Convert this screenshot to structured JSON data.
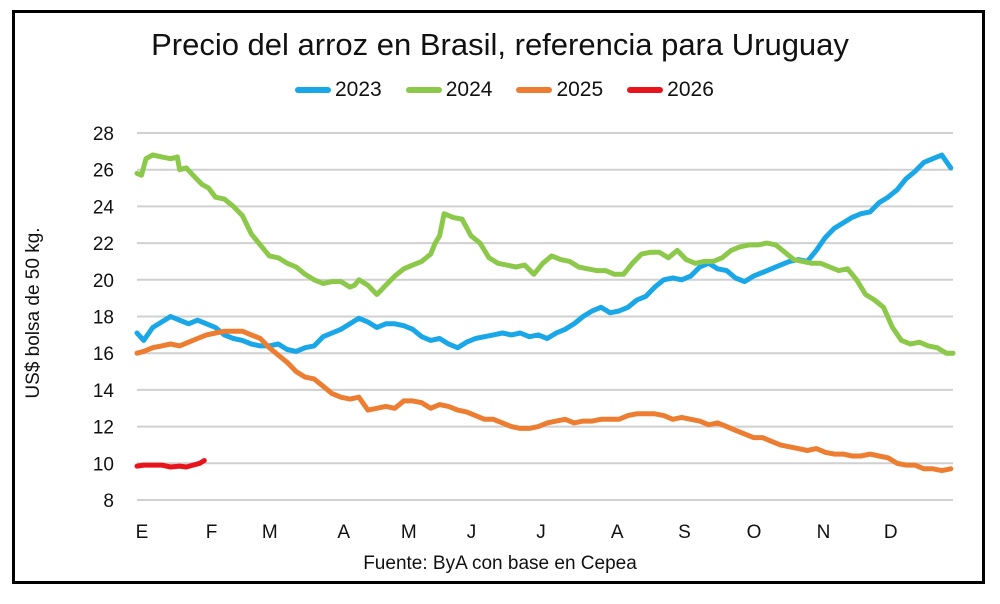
{
  "chart_data": {
    "type": "line",
    "title": "Precio del arroz en Brasil, referencia para Uruguay",
    "xlabel": "",
    "ylabel": "US$ bolsa de 50 kg.",
    "source": "Fuente: ByA con base en Cepea",
    "ylim": [
      8,
      28
    ],
    "yticks": [
      8,
      10,
      12,
      14,
      16,
      18,
      20,
      22,
      24,
      26,
      28
    ],
    "xlim": [
      1,
      365
    ],
    "xticks": [
      {
        "label": "E",
        "day": 1
      },
      {
        "label": "F",
        "day": 32
      },
      {
        "label": "M",
        "day": 58
      },
      {
        "label": "A",
        "day": 91
      },
      {
        "label": "M",
        "day": 120
      },
      {
        "label": "J",
        "day": 148
      },
      {
        "label": "J",
        "day": 179
      },
      {
        "label": "A",
        "day": 213
      },
      {
        "label": "S",
        "day": 243
      },
      {
        "label": "O",
        "day": 274
      },
      {
        "label": "N",
        "day": 305
      },
      {
        "label": "D",
        "day": 335
      }
    ],
    "grid": true,
    "legend_position": "top",
    "series": [
      {
        "name": "2023",
        "color": "#1AA7E8",
        "x": [
          1,
          4,
          8,
          12,
          16,
          20,
          24,
          28,
          32,
          36,
          40,
          44,
          48,
          52,
          56,
          60,
          64,
          68,
          72,
          76,
          80,
          84,
          88,
          92,
          96,
          100,
          104,
          108,
          112,
          116,
          120,
          124,
          128,
          132,
          136,
          140,
          144,
          148,
          152,
          156,
          160,
          164,
          168,
          172,
          176,
          180,
          184,
          188,
          192,
          196,
          200,
          204,
          208,
          212,
          216,
          220,
          224,
          228,
          232,
          236,
          240,
          244,
          248,
          252,
          256,
          260,
          264,
          268,
          272,
          276,
          280,
          284,
          288,
          292,
          296,
          300,
          304,
          308,
          312,
          316,
          320,
          324,
          328,
          332,
          336,
          340,
          344,
          348,
          352,
          356,
          360,
          364
        ],
        "y": [
          17.1,
          16.7,
          17.4,
          17.7,
          18.0,
          17.8,
          17.6,
          17.8,
          17.6,
          17.4,
          17.0,
          16.8,
          16.7,
          16.5,
          16.4,
          16.4,
          16.5,
          16.2,
          16.1,
          16.3,
          16.4,
          16.9,
          17.1,
          17.3,
          17.6,
          17.9,
          17.7,
          17.4,
          17.6,
          17.6,
          17.5,
          17.3,
          16.9,
          16.7,
          16.8,
          16.5,
          16.3,
          16.6,
          16.8,
          16.9,
          17.0,
          17.1,
          17.0,
          17.1,
          16.9,
          17.0,
          16.8,
          17.1,
          17.3,
          17.6,
          18.0,
          18.3,
          18.5,
          18.2,
          18.3,
          18.5,
          18.9,
          19.1,
          19.6,
          20.0,
          20.1,
          20.0,
          20.2,
          20.7,
          20.9,
          20.6,
          20.5,
          20.1,
          19.9,
          20.2,
          20.4,
          20.6,
          20.8,
          21.0,
          21.1,
          21.0,
          21.6,
          22.3,
          22.8,
          23.1,
          23.4,
          23.6,
          23.7,
          24.2,
          24.5,
          24.9,
          25.5,
          25.9,
          26.4,
          26.6,
          26.8,
          26.1
        ]
      },
      {
        "name": "2024",
        "color": "#8CC94A",
        "x": [
          1,
          3,
          5,
          8,
          12,
          16,
          19,
          20,
          23,
          26,
          30,
          33,
          36,
          40,
          44,
          48,
          52,
          56,
          60,
          64,
          68,
          72,
          76,
          80,
          84,
          88,
          92,
          96,
          98,
          100,
          104,
          108,
          112,
          116,
          120,
          124,
          128,
          132,
          134,
          136,
          138,
          142,
          146,
          150,
          154,
          158,
          162,
          166,
          170,
          174,
          178,
          182,
          186,
          190,
          194,
          198,
          202,
          206,
          210,
          214,
          218,
          222,
          226,
          230,
          234,
          238,
          242,
          246,
          250,
          254,
          258,
          262,
          266,
          270,
          274,
          278,
          282,
          286,
          290,
          294,
          298,
          302,
          306,
          310,
          314,
          318,
          322,
          326,
          330,
          334,
          338,
          342,
          346,
          350,
          354,
          358,
          362,
          365
        ],
        "y": [
          25.8,
          25.7,
          26.6,
          26.8,
          26.7,
          26.6,
          26.7,
          26.0,
          26.1,
          25.7,
          25.2,
          25.0,
          24.5,
          24.4,
          24.0,
          23.5,
          22.5,
          21.9,
          21.3,
          21.2,
          20.9,
          20.7,
          20.3,
          20.0,
          19.8,
          19.9,
          19.9,
          19.6,
          19.7,
          20.0,
          19.7,
          19.2,
          19.7,
          20.2,
          20.6,
          20.8,
          21.0,
          21.4,
          22.0,
          22.4,
          23.6,
          23.4,
          23.3,
          22.4,
          22.0,
          21.2,
          20.9,
          20.8,
          20.7,
          20.8,
          20.3,
          20.9,
          21.3,
          21.1,
          21.0,
          20.7,
          20.6,
          20.5,
          20.5,
          20.3,
          20.3,
          20.9,
          21.4,
          21.5,
          21.5,
          21.2,
          21.6,
          21.1,
          20.9,
          21.0,
          21.0,
          21.2,
          21.6,
          21.8,
          21.9,
          21.9,
          22.0,
          21.9,
          21.5,
          21.1,
          21.0,
          20.9,
          20.9,
          20.7,
          20.5,
          20.6,
          20.0,
          19.2,
          18.9,
          18.5,
          17.4,
          16.7,
          16.5,
          16.6,
          16.4,
          16.3,
          16.0,
          16.0
        ]
      },
      {
        "name": "2025",
        "color": "#ED7D31",
        "x": [
          1,
          4,
          8,
          12,
          16,
          20,
          24,
          28,
          32,
          36,
          40,
          44,
          48,
          52,
          56,
          60,
          64,
          68,
          72,
          76,
          80,
          84,
          88,
          92,
          96,
          100,
          104,
          108,
          112,
          116,
          120,
          124,
          128,
          132,
          136,
          140,
          144,
          148,
          152,
          156,
          160,
          164,
          168,
          172,
          176,
          180,
          184,
          188,
          192,
          196,
          200,
          204,
          208,
          212,
          216,
          220,
          224,
          228,
          232,
          236,
          240,
          244,
          248,
          252,
          256,
          260,
          264,
          268,
          272,
          276,
          280,
          284,
          288,
          292,
          296,
          300,
          304,
          308,
          312,
          316,
          320,
          324,
          328,
          332,
          336,
          340,
          344,
          348,
          352,
          356,
          360,
          364
        ],
        "y": [
          16.0,
          16.1,
          16.3,
          16.4,
          16.5,
          16.4,
          16.6,
          16.8,
          17.0,
          17.1,
          17.2,
          17.2,
          17.2,
          17.0,
          16.8,
          16.3,
          15.9,
          15.5,
          15.0,
          14.7,
          14.6,
          14.2,
          13.8,
          13.6,
          13.5,
          13.6,
          12.9,
          13.0,
          13.1,
          13.0,
          13.4,
          13.4,
          13.3,
          13.0,
          13.2,
          13.1,
          12.9,
          12.8,
          12.6,
          12.4,
          12.4,
          12.2,
          12.0,
          11.9,
          11.9,
          12.0,
          12.2,
          12.3,
          12.4,
          12.2,
          12.3,
          12.3,
          12.4,
          12.4,
          12.4,
          12.6,
          12.7,
          12.7,
          12.7,
          12.6,
          12.4,
          12.5,
          12.4,
          12.3,
          12.1,
          12.2,
          12.0,
          11.8,
          11.6,
          11.4,
          11.4,
          11.2,
          11.0,
          10.9,
          10.8,
          10.7,
          10.8,
          10.6,
          10.5,
          10.5,
          10.4,
          10.4,
          10.5,
          10.4,
          10.3,
          10.0,
          9.9,
          9.9,
          9.7,
          9.7,
          9.6,
          9.7
        ]
      },
      {
        "name": "2026",
        "color": "#E8141C",
        "x": [
          1,
          4,
          8,
          12,
          16,
          20,
          23,
          26,
          29,
          31
        ],
        "y": [
          9.85,
          9.9,
          9.9,
          9.9,
          9.8,
          9.85,
          9.8,
          9.9,
          10.0,
          10.15
        ]
      }
    ]
  }
}
